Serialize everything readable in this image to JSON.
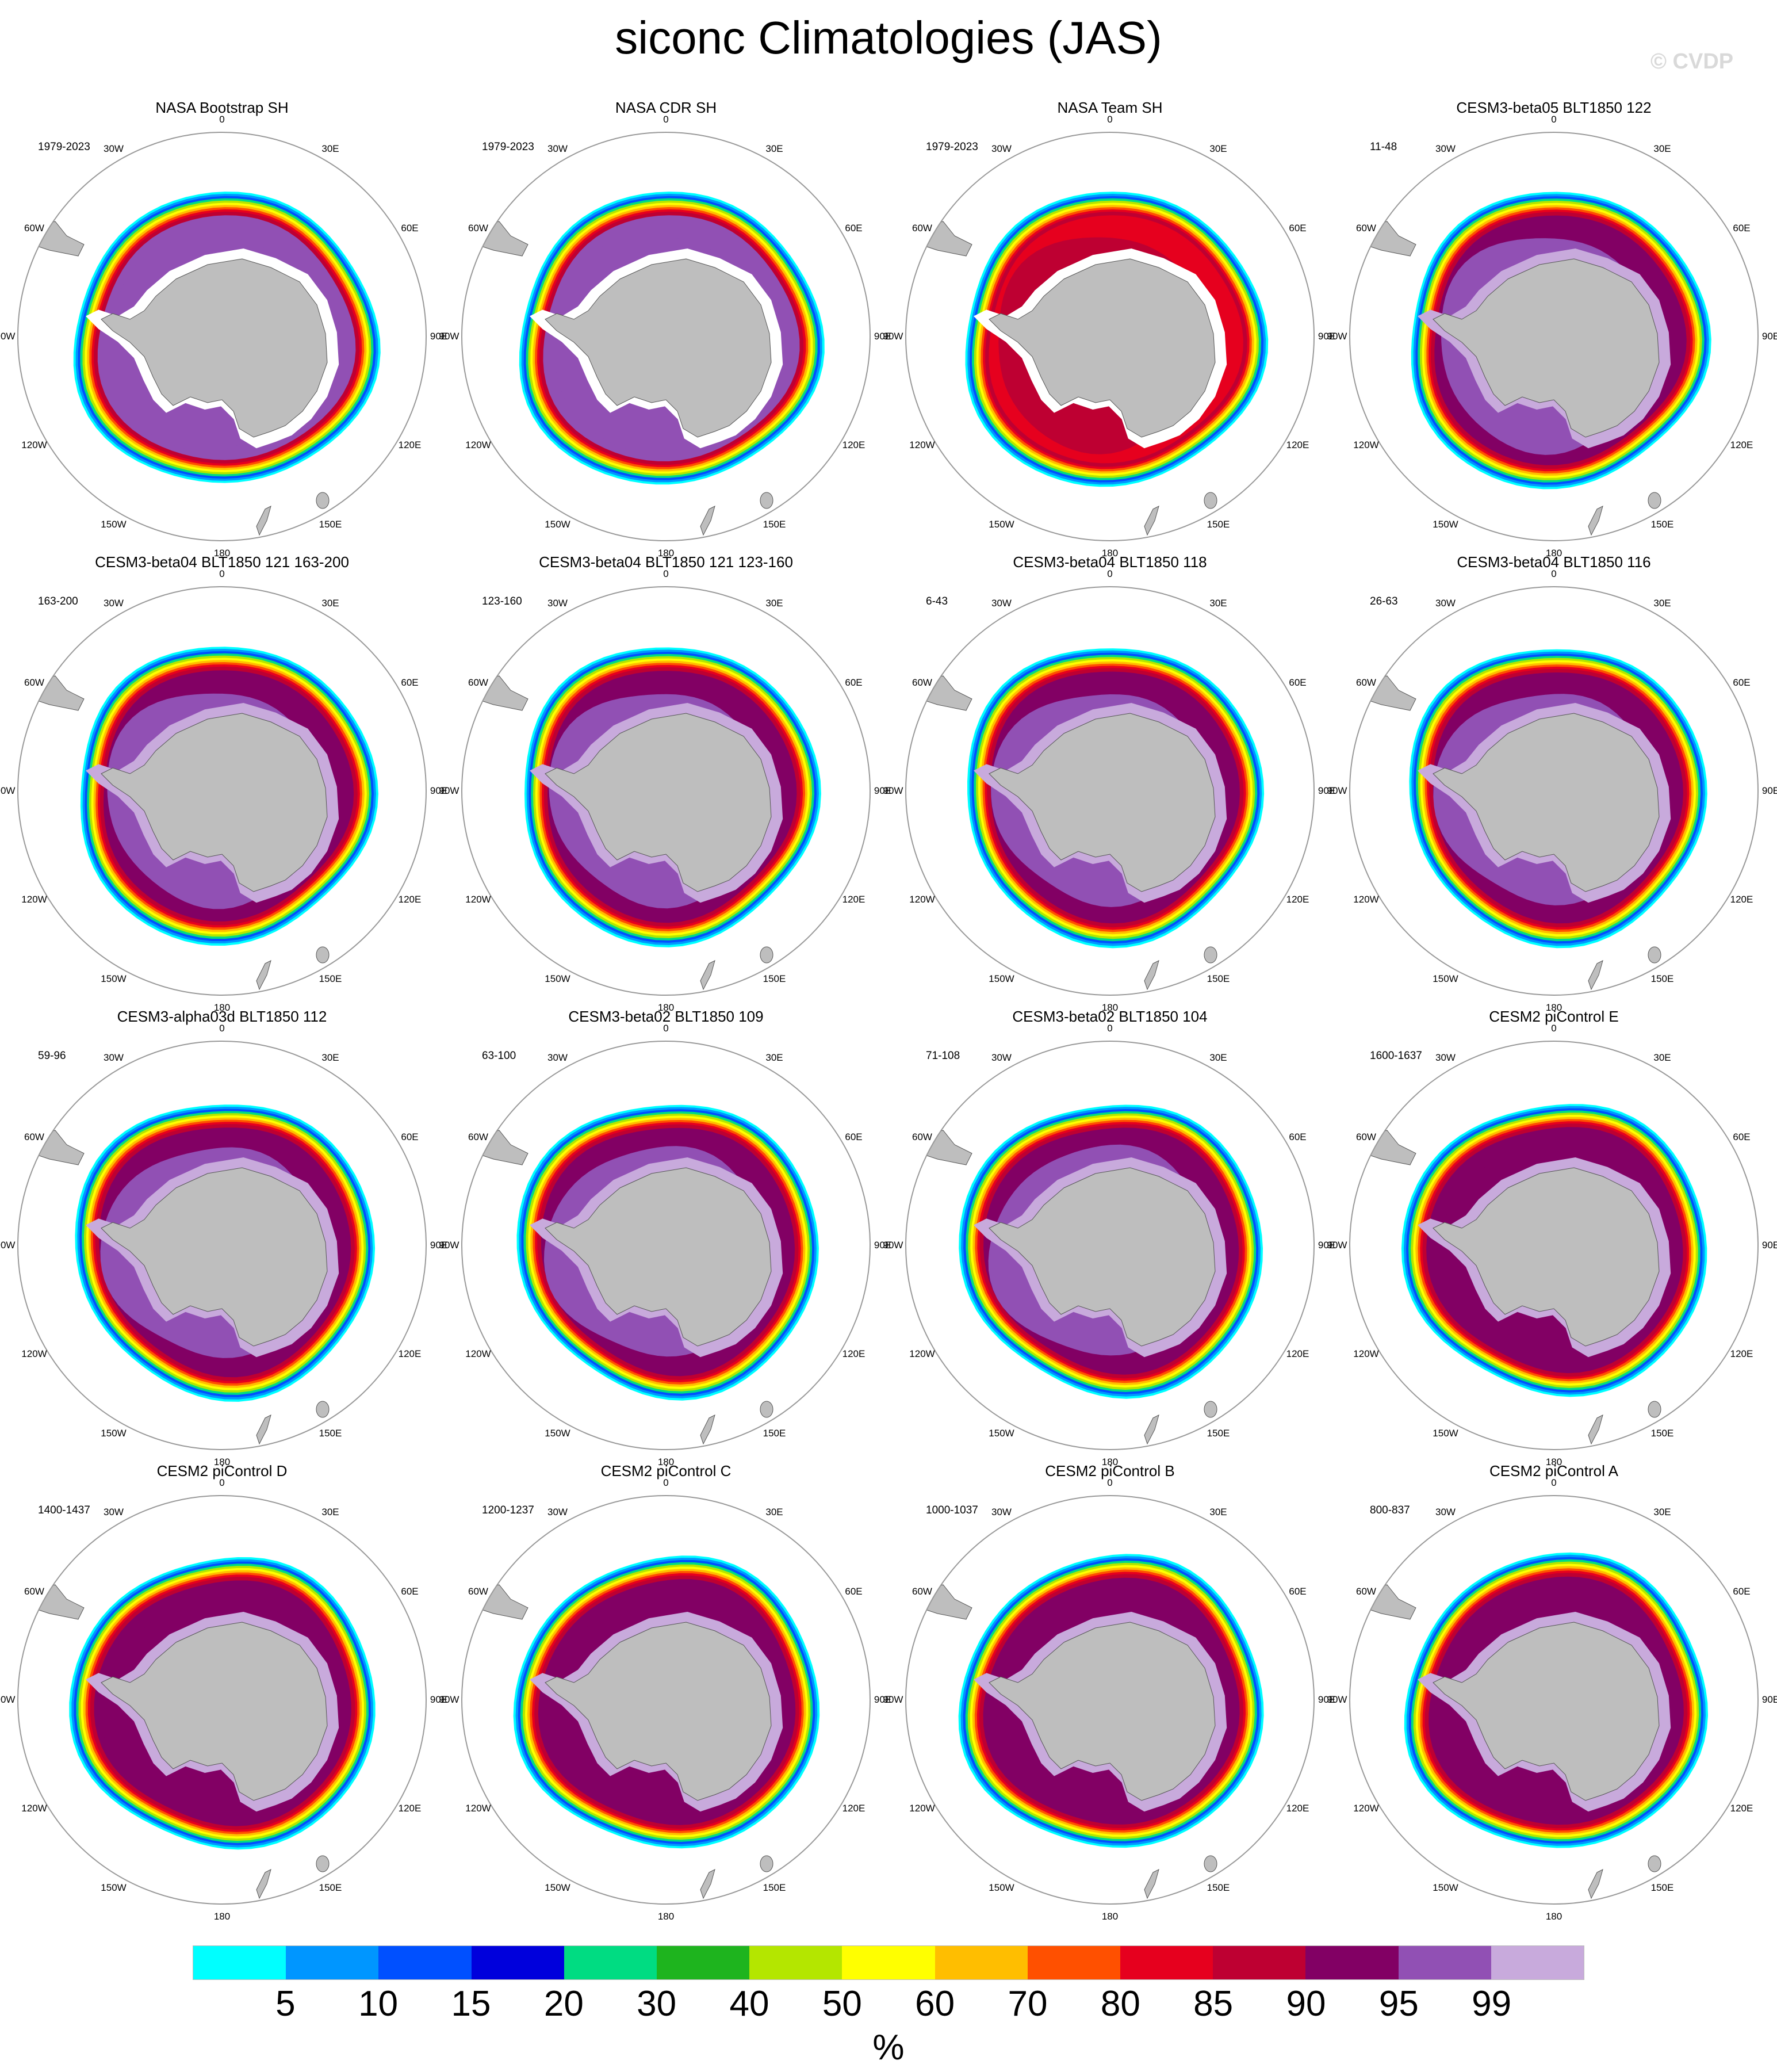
{
  "title": "siconc Climatologies (JAS)",
  "watermark": "© CVDP",
  "longitude_labels": [
    "0",
    "30E",
    "60E",
    "90E",
    "120E",
    "150E",
    "180",
    "150W",
    "120W",
    "90W",
    "60W",
    "30W"
  ],
  "colors": {
    "land": "#bebebe",
    "coast": "#555555",
    "border": "#999999"
  },
  "panels": [
    {
      "title": "NASA Bootstrap SH",
      "years": "1979-2023",
      "style": "obs"
    },
    {
      "title": "NASA CDR SH",
      "years": "1979-2023",
      "style": "obs"
    },
    {
      "title": "NASA Team SH",
      "years": "1979-2023",
      "style": "team"
    },
    {
      "title": "CESM3-beta05 BLT1850 122",
      "years": "11-48",
      "style": "model"
    },
    {
      "title": "CESM3-beta04 BLT1850 121 163-200",
      "years": "163-200",
      "style": "model"
    },
    {
      "title": "CESM3-beta04 BLT1850 121 123-160",
      "years": "123-160",
      "style": "model"
    },
    {
      "title": "CESM3-beta04 BLT1850 118",
      "years": "6-43",
      "style": "model"
    },
    {
      "title": "CESM3-beta04 BLT1850 116",
      "years": "26-63",
      "style": "model"
    },
    {
      "title": "CESM3-alpha03d BLT1850 112",
      "years": "59-96",
      "style": "model"
    },
    {
      "title": "CESM3-beta02 BLT1850 109",
      "years": "63-100",
      "style": "model"
    },
    {
      "title": "CESM3-beta02 BLT1850 104",
      "years": "71-108",
      "style": "model"
    },
    {
      "title": "CESM2 piControl E",
      "years": "1600-1637",
      "style": "cesm2"
    },
    {
      "title": "CESM2 piControl D",
      "years": "1400-1437",
      "style": "cesm2"
    },
    {
      "title": "CESM2 piControl C",
      "years": "1200-1237",
      "style": "cesm2"
    },
    {
      "title": "CESM2 piControl B",
      "years": "1000-1037",
      "style": "cesm2"
    },
    {
      "title": "CESM2 piControl A",
      "years": "800-837",
      "style": "cesm2"
    }
  ],
  "legend": {
    "colors": [
      "#00ffff",
      "#0096ff",
      "#0050ff",
      "#0000dc",
      "#00dc82",
      "#1eb41e",
      "#b4e600",
      "#ffff00",
      "#ffbe00",
      "#ff5000",
      "#e6001e",
      "#be0032",
      "#820064",
      "#9150b4",
      "#c8aadc"
    ],
    "ticks": [
      "5",
      "10",
      "15",
      "20",
      "30",
      "40",
      "50",
      "60",
      "70",
      "80",
      "85",
      "90",
      "95",
      "99"
    ],
    "unit": "%"
  }
}
